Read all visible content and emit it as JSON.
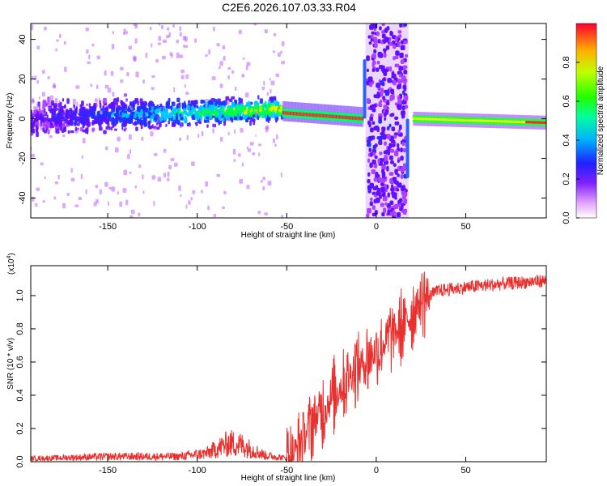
{
  "title": "C2E6.2026.107.03.33.R04",
  "charts": [
    {
      "type": "heatmap",
      "xlabel": "Height of straight line (km)",
      "ylabel": "Frequency (Hz)",
      "xlim": [
        -193,
        95
      ],
      "ylim": [
        -50,
        48
      ],
      "xticks": [
        -150,
        -100,
        -50,
        0,
        50
      ],
      "yticks": [
        -40,
        -20,
        0,
        20,
        40
      ],
      "colorbar": {
        "label": "Normalized spectral amplitude",
        "ticks": [
          0.0,
          0.2,
          0.4,
          0.6,
          0.8
        ],
        "range": [
          0,
          1
        ]
      },
      "features": [
        {
          "name": "noisy broadband trace",
          "x_range": [
            -193,
            -52
          ],
          "center_freq_hz": [
            0,
            5
          ],
          "band_hz": 15
        },
        {
          "name": "narrow strong trace",
          "x_range": [
            -52,
            -7
          ],
          "center_freq_hz": [
            3,
            0
          ]
        },
        {
          "name": "wide scatter column",
          "x_range": [
            -5,
            17
          ],
          "freq_range": [
            -50,
            48
          ]
        },
        {
          "name": "steady narrow trace",
          "x_range": [
            21,
            95
          ],
          "center_freq_hz": [
            0,
            -2
          ]
        }
      ]
    },
    {
      "type": "line",
      "xlabel": "Height of straight line (km)",
      "ylabel": "SNR (10 * v/v)",
      "scale_label": "(x10",
      "scale_exp": "4",
      "scale_close": ")",
      "xlim": [
        -193,
        95
      ],
      "ylim": [
        0,
        1.18
      ],
      "xticks": [
        -150,
        -100,
        -50,
        0,
        50
      ],
      "yticks": [
        0.0,
        0.2,
        0.4,
        0.6,
        0.8,
        1.0
      ],
      "ytick_labels": [
        "0.0",
        "0.2",
        "0.4",
        "0.6",
        "0.8",
        "1.0"
      ],
      "color": "#e8312f",
      "envelope": [
        {
          "x": -193,
          "y": 0.03
        },
        {
          "x": -150,
          "y": 0.05
        },
        {
          "x": -110,
          "y": 0.05
        },
        {
          "x": -95,
          "y": 0.08
        },
        {
          "x": -82,
          "y": 0.18
        },
        {
          "x": -75,
          "y": 0.16
        },
        {
          "x": -62,
          "y": 0.06
        },
        {
          "x": -48,
          "y": 0.03
        },
        {
          "x": -44,
          "y": 0.08
        },
        {
          "x": -35,
          "y": 0.25
        },
        {
          "x": -25,
          "y": 0.38
        },
        {
          "x": -15,
          "y": 0.52
        },
        {
          "x": -5,
          "y": 0.62
        },
        {
          "x": 5,
          "y": 0.72
        },
        {
          "x": 15,
          "y": 0.82
        },
        {
          "x": 25,
          "y": 0.97
        },
        {
          "x": 35,
          "y": 1.03
        },
        {
          "x": 50,
          "y": 1.05
        },
        {
          "x": 70,
          "y": 1.07
        },
        {
          "x": 95,
          "y": 1.09
        }
      ]
    }
  ],
  "colormap": [
    "#ffffff",
    "#b040ff",
    "#6010ff",
    "#2030ff",
    "#00c8ff",
    "#00ff40",
    "#e0ff00",
    "#ff8000",
    "#ff1000"
  ]
}
